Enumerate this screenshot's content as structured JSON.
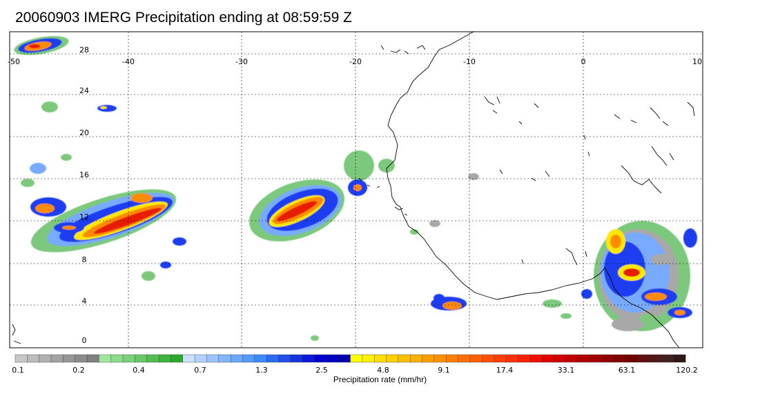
{
  "title": "20060903 IMERG Precipitation ending at 08:59:59 Z",
  "longitude_labels": [
    "-50",
    "-40",
    "-30",
    "-20",
    "-10",
    "0",
    "10"
  ],
  "latitude_labels": [
    "28",
    "24",
    "20",
    "16",
    "12",
    "8",
    "4",
    "0"
  ],
  "colorbar": {
    "title": "Precipitation rate (mm/hr)",
    "tick_labels": [
      "0.1",
      "0.2",
      "0.4",
      "0.7",
      "1.3",
      "2.5",
      "4.8",
      "9.1",
      "17.4",
      "33.1",
      "63.1",
      "120.2"
    ],
    "colors": [
      "#c8c8c8",
      "#bcbcbc",
      "#b0b0b0",
      "#a4a4a4",
      "#989898",
      "#8c8c8c",
      "#808080",
      "#a0e6a0",
      "#8ddc8d",
      "#7ad27a",
      "#66c866",
      "#52be52",
      "#3eb43e",
      "#2aaa2a",
      "#cce0ff",
      "#b4d2ff",
      "#9cc4ff",
      "#84b6ff",
      "#6ca8ff",
      "#549aff",
      "#3c8cff",
      "#2a6cf0",
      "#2050e8",
      "#1634e0",
      "#0c18d8",
      "#0000d0",
      "#0000c0",
      "#0000b0",
      "#ffff00",
      "#fff000",
      "#ffe000",
      "#ffd000",
      "#ffc000",
      "#ffb000",
      "#ffa000",
      "#ff9000",
      "#ff8000",
      "#ff7000",
      "#ff6000",
      "#ff5000",
      "#ff4000",
      "#ff3000",
      "#ff2000",
      "#f01000",
      "#e00000",
      "#d00000",
      "#c00000",
      "#b00000",
      "#a00000",
      "#900000",
      "#800000",
      "#700000",
      "#601010",
      "#501818",
      "#402020",
      "#301818"
    ]
  },
  "rain_colors": {
    "gray": "#a8a8a8",
    "green": "#7cc87c",
    "light_blue": "#78aaff",
    "blue": "#1e3cf0",
    "yellow": "#ffe800",
    "orange": "#ff8c00",
    "red": "#e81e00"
  }
}
